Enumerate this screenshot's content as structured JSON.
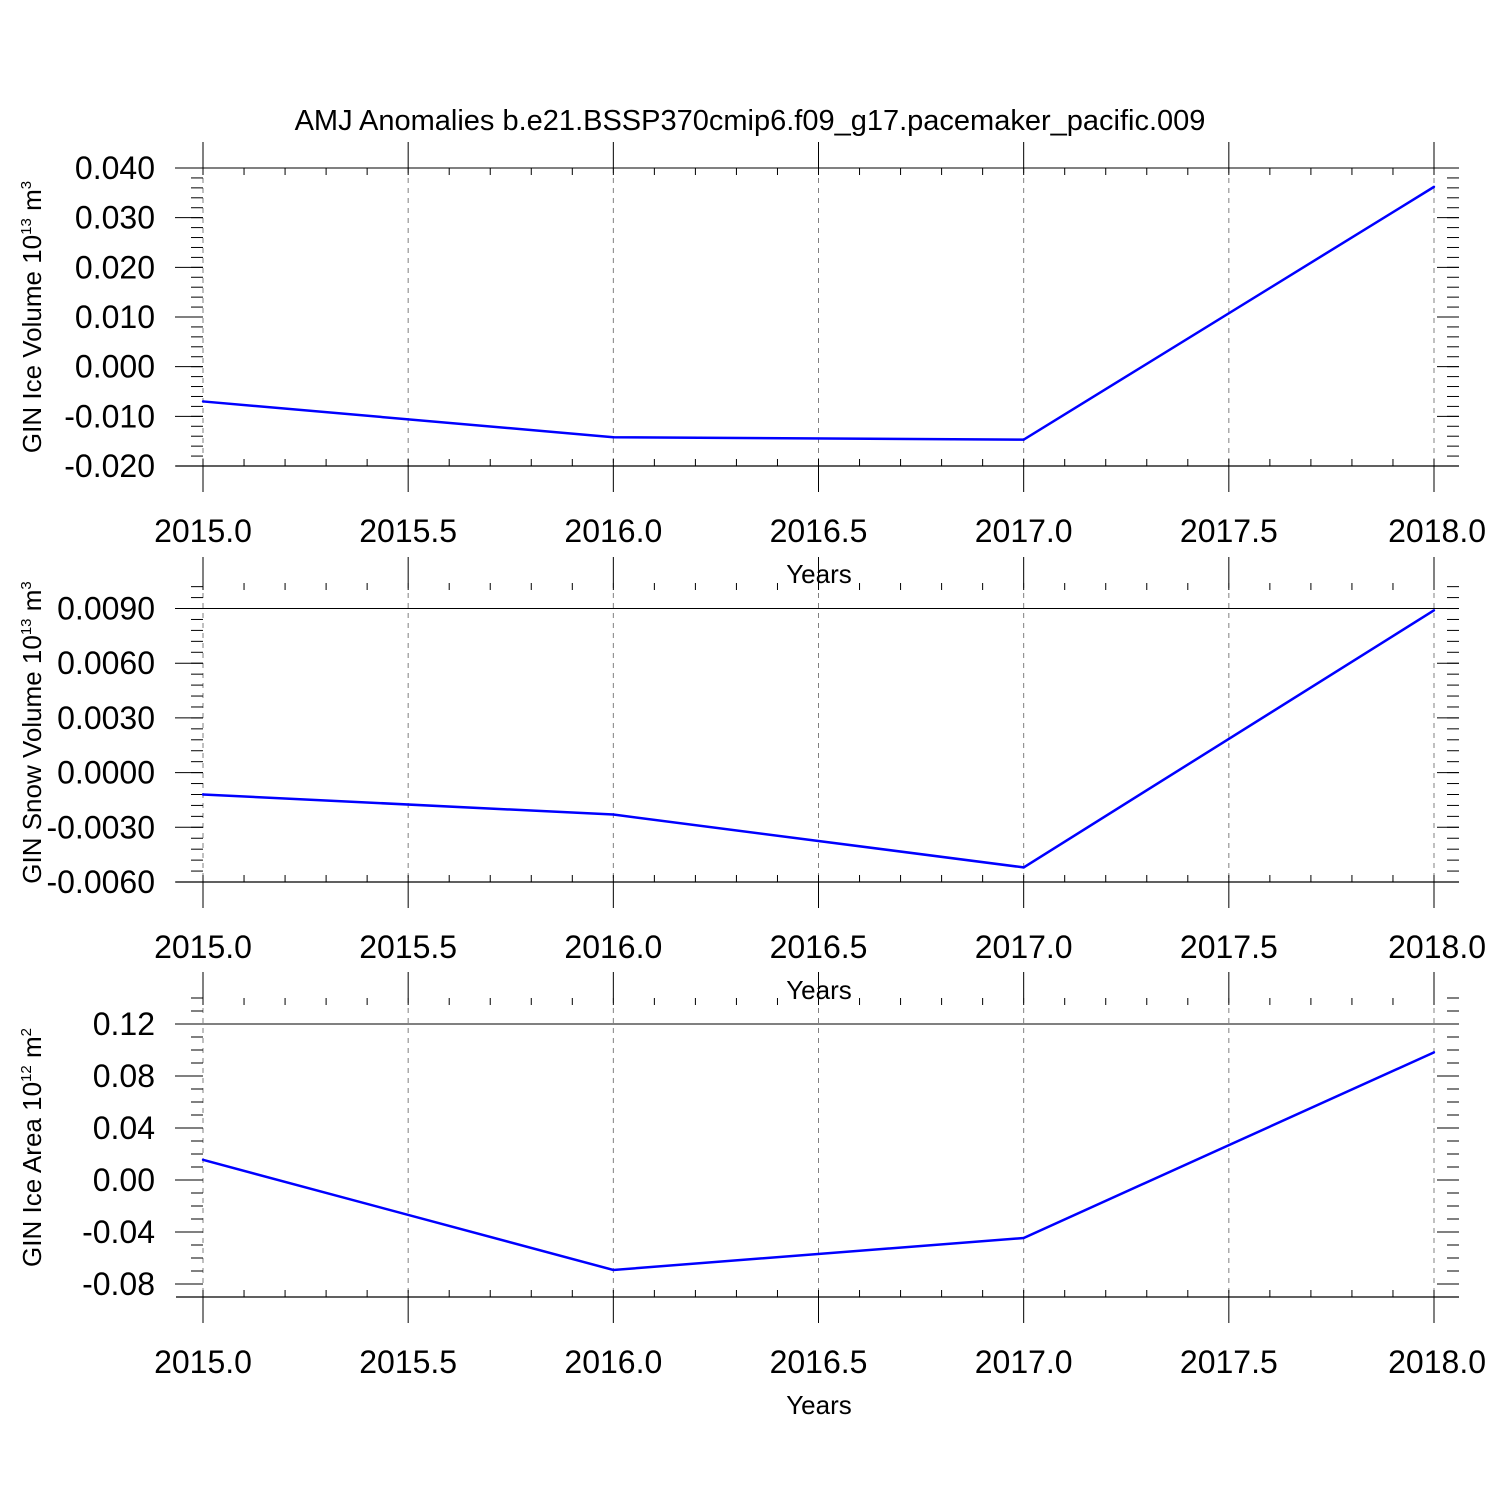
{
  "title": "AMJ Anomalies b.e21.BSSP370cmip6.f09_g17.pacemaker_pacific.009",
  "colors": {
    "line": "#0000ff",
    "axis": "#000000",
    "grid": "#808080"
  },
  "chart_data": [
    {
      "type": "line",
      "xlabel": "Years",
      "ylabel": {
        "text": "GIN Ice Volume 10",
        "sup": "13",
        "unit": " m",
        "unit_sup": "3"
      },
      "x": [
        2015.0,
        2016.0,
        2017.0,
        2018.0
      ],
      "series": [
        {
          "values": [
            -0.007,
            -0.0142,
            -0.0147,
            0.0362
          ]
        }
      ],
      "xlim": [
        2015.0,
        2018.0
      ],
      "ylim": [
        -0.02,
        0.04
      ],
      "xticks": [
        2015.0,
        2015.5,
        2016.0,
        2016.5,
        2017.0,
        2017.5,
        2018.0
      ],
      "xtick_labels": [
        "2015.0",
        "2015.5",
        "2016.0",
        "2016.5",
        "2017.0",
        "2017.5",
        "2018.0"
      ],
      "yticks": [
        -0.02,
        -0.01,
        0.0,
        0.01,
        0.02,
        0.03,
        0.04
      ],
      "ytick_labels": [
        "-0.020",
        "-0.010",
        "0.000",
        "0.010",
        "0.020",
        "0.030",
        "0.040"
      ],
      "yminor_step": 0.002,
      "grid": "vertical dashed"
    },
    {
      "type": "line",
      "xlabel": "Years",
      "ylabel": {
        "text": "GIN Snow Volume 10",
        "sup": "13",
        "unit": " m",
        "unit_sup": "3"
      },
      "x": [
        2015.0,
        2016.0,
        2017.0,
        2018.0
      ],
      "series": [
        {
          "values": [
            -0.0012,
            -0.0023,
            -0.0052,
            0.0089
          ]
        }
      ],
      "xlim": [
        2015.0,
        2018.0
      ],
      "ylim": [
        -0.006,
        0.0104
      ],
      "xticks": [
        2015.0,
        2015.5,
        2016.0,
        2016.5,
        2017.0,
        2017.5,
        2018.0
      ],
      "xtick_labels": [
        "2015.0",
        "2015.5",
        "2016.0",
        "2016.5",
        "2017.0",
        "2017.5",
        "2018.0"
      ],
      "yticks": [
        -0.006,
        -0.003,
        0.0,
        0.003,
        0.006,
        0.009
      ],
      "ytick_labels": [
        "-0.0060",
        "-0.0030",
        "0.0000",
        "0.0030",
        "0.0060",
        "0.0090"
      ],
      "yminor_step": 0.0006,
      "grid": "vertical dashed"
    },
    {
      "type": "line",
      "xlabel": "Years",
      "ylabel": {
        "text": "GIN Ice Area 10",
        "sup": "12",
        "unit": " m",
        "unit_sup": "2"
      },
      "x": [
        2015.0,
        2016.0,
        2017.0,
        2018.0
      ],
      "series": [
        {
          "values": [
            0.0155,
            -0.0692,
            -0.0446,
            0.0982
          ]
        }
      ],
      "xlim": [
        2015.0,
        2018.0
      ],
      "ylim": [
        -0.09,
        0.14
      ],
      "xticks": [
        2015.0,
        2015.5,
        2016.0,
        2016.5,
        2017.0,
        2017.5,
        2018.0
      ],
      "xtick_labels": [
        "2015.0",
        "2015.5",
        "2016.0",
        "2016.5",
        "2017.0",
        "2017.5",
        "2018.0"
      ],
      "yticks": [
        -0.08,
        -0.04,
        0.0,
        0.04,
        0.08,
        0.12
      ],
      "ytick_labels": [
        "-0.08",
        "-0.04",
        "0.00",
        "0.04",
        "0.08",
        "0.12"
      ],
      "yminor_step": 0.01,
      "grid": "vertical dashed"
    }
  ]
}
